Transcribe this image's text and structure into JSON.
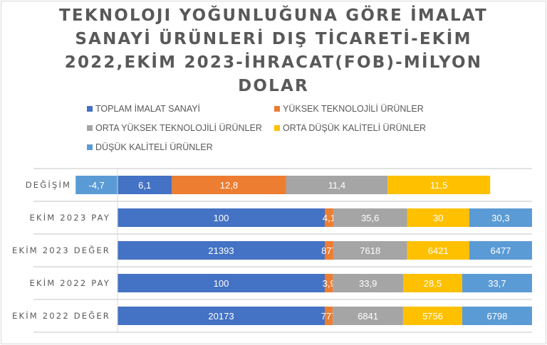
{
  "chart_data": {
    "type": "bar",
    "orientation": "horizontal",
    "stacking": "percent",
    "title_lines": [
      "TEKNOLOJI YOĞUNLUĞUNA GÖRE İMALAT",
      "SANAYİ ÜRÜNLERİ DIŞ TİCARETİ-EKİM",
      "2022,EKİM 2023-İHRACAT(FOB)-MİLYON",
      "DOLAR"
    ],
    "legend_position": "top",
    "categories": [
      "DEĞİŞİM",
      "EKİM 2023 PAY",
      "EKİM 2023 DEĞER",
      "EKİM 2022 PAY",
      "EKİM 2022 DEĞER"
    ],
    "series": [
      {
        "name": "TOPLAM İMALAT SANAYİ",
        "color": "#4472C4",
        "values": [
          6.1,
          100,
          21393,
          100,
          20173
        ],
        "labels": [
          "6,1",
          "100",
          "21393",
          "100",
          "20173"
        ]
      },
      {
        "name": "YÜKSEK TEKNOLOJİLİ ÜRÜNLER",
        "color": "#ED7D31",
        "values": [
          12.8,
          4.1,
          877,
          3.9,
          777
        ],
        "labels": [
          "12,8",
          "4,1",
          "877",
          "3,9",
          "777"
        ]
      },
      {
        "name": "ORTA YÜKSEK TEKNOLOJİLİ ÜRÜNLER",
        "color": "#A5A5A5",
        "values": [
          11.4,
          35.6,
          7618,
          33.9,
          6841
        ],
        "labels": [
          "11,4",
          "35,6",
          "7618",
          "33,9",
          "6841"
        ]
      },
      {
        "name": "ORTA DÜŞÜK KALİTELİ ÜRÜNLER",
        "color": "#FFC000",
        "values": [
          11.5,
          30,
          6421,
          28.5,
          5756
        ],
        "labels": [
          "11,5",
          "30",
          "6421",
          "28,5",
          "5756"
        ]
      },
      {
        "name": "DÜŞÜK KALİTELİ ÜRÜNLER",
        "color": "#5B9BD5",
        "values": [
          -4.7,
          30.3,
          6477,
          33.7,
          6798
        ],
        "labels": [
          "-4,7",
          "30,3",
          "6477",
          "33,7",
          "6798"
        ]
      }
    ],
    "grid": true,
    "xlabel": "",
    "ylabel": ""
  }
}
